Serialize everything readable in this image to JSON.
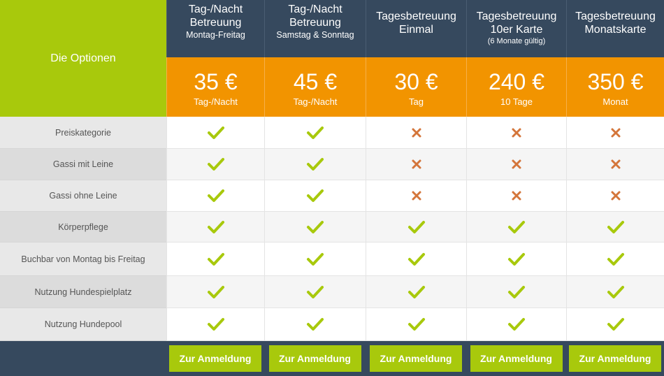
{
  "table": {
    "options_title": "Die Optionen",
    "plans": [
      {
        "title_line1": "Tag-/Nacht",
        "title_line2": "Betreuung",
        "title_line3": "Montag-Freitag",
        "title_line4": "",
        "price": "35 €",
        "unit": "Tag-/Nacht"
      },
      {
        "title_line1": "Tag-/Nacht",
        "title_line2": "Betreuung",
        "title_line3": "Samstag & Sonntag",
        "title_line4": "",
        "price": "45 €",
        "unit": "Tag-/Nacht"
      },
      {
        "title_line1": "Tagesbetreuung",
        "title_line2": "Einmal",
        "title_line3": "",
        "title_line4": "",
        "price": "30 €",
        "unit": "Tag"
      },
      {
        "title_line1": "Tagesbetreuung",
        "title_line2": "10er Karte",
        "title_line3": "",
        "title_line4": "(6 Monate gültig)",
        "price": "240 €",
        "unit": "10 Tage"
      },
      {
        "title_line1": "Tagesbetreuung",
        "title_line2": "Monatskarte",
        "title_line3": "",
        "title_line4": "",
        "price": "350 €",
        "unit": "Monat"
      }
    ],
    "features": [
      {
        "label": "Preiskategorie",
        "included": [
          true,
          true,
          false,
          false,
          false
        ]
      },
      {
        "label": "Gassi mit Leine",
        "included": [
          true,
          true,
          false,
          false,
          false
        ]
      },
      {
        "label": "Gassi ohne Leine",
        "included": [
          true,
          true,
          false,
          false,
          false
        ]
      },
      {
        "label": "Körperpflege",
        "included": [
          true,
          true,
          true,
          true,
          true
        ]
      },
      {
        "label": "Buchbar von Montag bis Freitag",
        "included": [
          true,
          true,
          true,
          true,
          true
        ]
      },
      {
        "label": "Nutzung Hundespielplatz",
        "included": [
          true,
          true,
          true,
          true,
          true
        ]
      },
      {
        "label": "Nutzung Hundepool",
        "included": [
          true,
          true,
          true,
          true,
          true
        ]
      }
    ],
    "signup_label": "Zur Anmeldung"
  },
  "icons": {
    "included": "check-icon",
    "excluded": "cross-icon"
  },
  "colors": {
    "header_dark": "#36495e",
    "accent_green": "#a8c90c",
    "price_orange": "#f29400",
    "check_green": "#a8c90c",
    "cross_orange": "#d4753a"
  }
}
